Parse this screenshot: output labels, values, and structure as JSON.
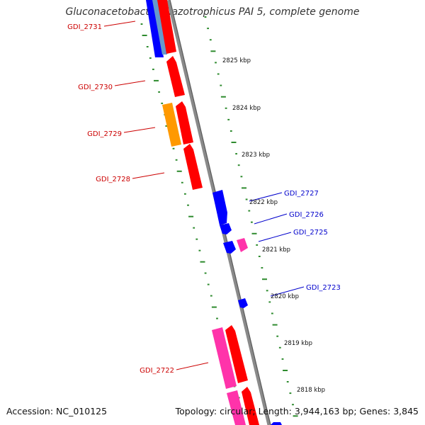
{
  "header": {
    "title": "Gluconacetobacter diazotrophicus PAI 5, complete genome"
  },
  "footer": {
    "accession": "Accession: NC_010125",
    "summary": "Topology: circular; Length: 3,944,163 bp; Genes: 3,845"
  },
  "colors": {
    "backbone": "#8a8a8a",
    "ruler": "#2e8b2e",
    "forward_label": "#cc0000",
    "reverse_label": "#0000cc",
    "gene_red": "#ff0000",
    "gene_blue": "#0000ff",
    "gene_pink": "#ff33aa",
    "gene_orange": "#ff9900",
    "gene_lightblue": "#6699cc"
  },
  "ticks": [
    "2825 kbp",
    "2824 kbp",
    "2823 kbp",
    "2822 kbp",
    "2821 kbp",
    "2820 kbp",
    "2819 kbp",
    "2818 kbp"
  ],
  "gene_labels": {
    "left": [
      "GDI_2731",
      "GDI_2730",
      "GDI_2729",
      "GDI_2728",
      "GDI_2722"
    ],
    "right": [
      "GDI_2727",
      "GDI_2726",
      "GDI_2725",
      "GDI_2723"
    ]
  }
}
